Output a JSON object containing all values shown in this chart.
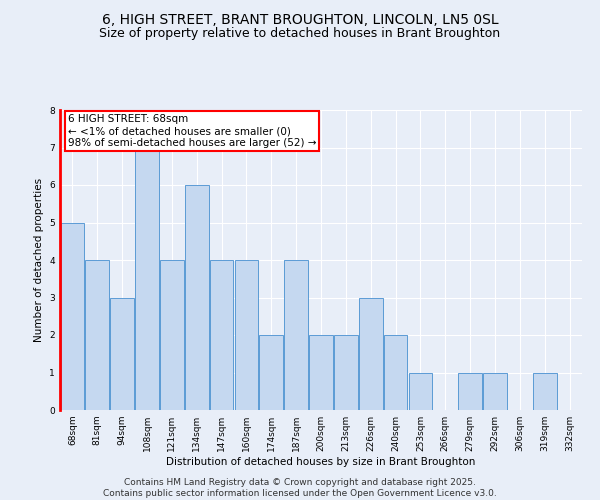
{
  "title": "6, HIGH STREET, BRANT BROUGHTON, LINCOLN, LN5 0SL",
  "subtitle": "Size of property relative to detached houses in Brant Broughton",
  "xlabel": "Distribution of detached houses by size in Brant Broughton",
  "ylabel": "Number of detached properties",
  "categories": [
    "68sqm",
    "81sqm",
    "94sqm",
    "108sqm",
    "121sqm",
    "134sqm",
    "147sqm",
    "160sqm",
    "174sqm",
    "187sqm",
    "200sqm",
    "213sqm",
    "226sqm",
    "240sqm",
    "253sqm",
    "266sqm",
    "279sqm",
    "292sqm",
    "306sqm",
    "319sqm",
    "332sqm"
  ],
  "values": [
    5,
    4,
    3,
    7,
    4,
    6,
    4,
    4,
    2,
    4,
    2,
    2,
    3,
    2,
    1,
    0,
    1,
    1,
    0,
    1,
    0
  ],
  "bar_color": "#c5d8f0",
  "bar_edge_color": "#5b9bd5",
  "annotation_text": "6 HIGH STREET: 68sqm\n← <1% of detached houses are smaller (0)\n98% of semi-detached houses are larger (52) →",
  "ylim": [
    0,
    8
  ],
  "yticks": [
    0,
    1,
    2,
    3,
    4,
    5,
    6,
    7,
    8
  ],
  "footer": "Contains HM Land Registry data © Crown copyright and database right 2025.\nContains public sector information licensed under the Open Government Licence v3.0.",
  "bg_color": "#e8eef8",
  "fig_color": "#e8eef8",
  "grid_color": "#ffffff",
  "title_fontsize": 10,
  "subtitle_fontsize": 9,
  "label_fontsize": 7.5,
  "tick_fontsize": 6.5,
  "footer_fontsize": 6.5,
  "annot_fontsize": 7.5
}
